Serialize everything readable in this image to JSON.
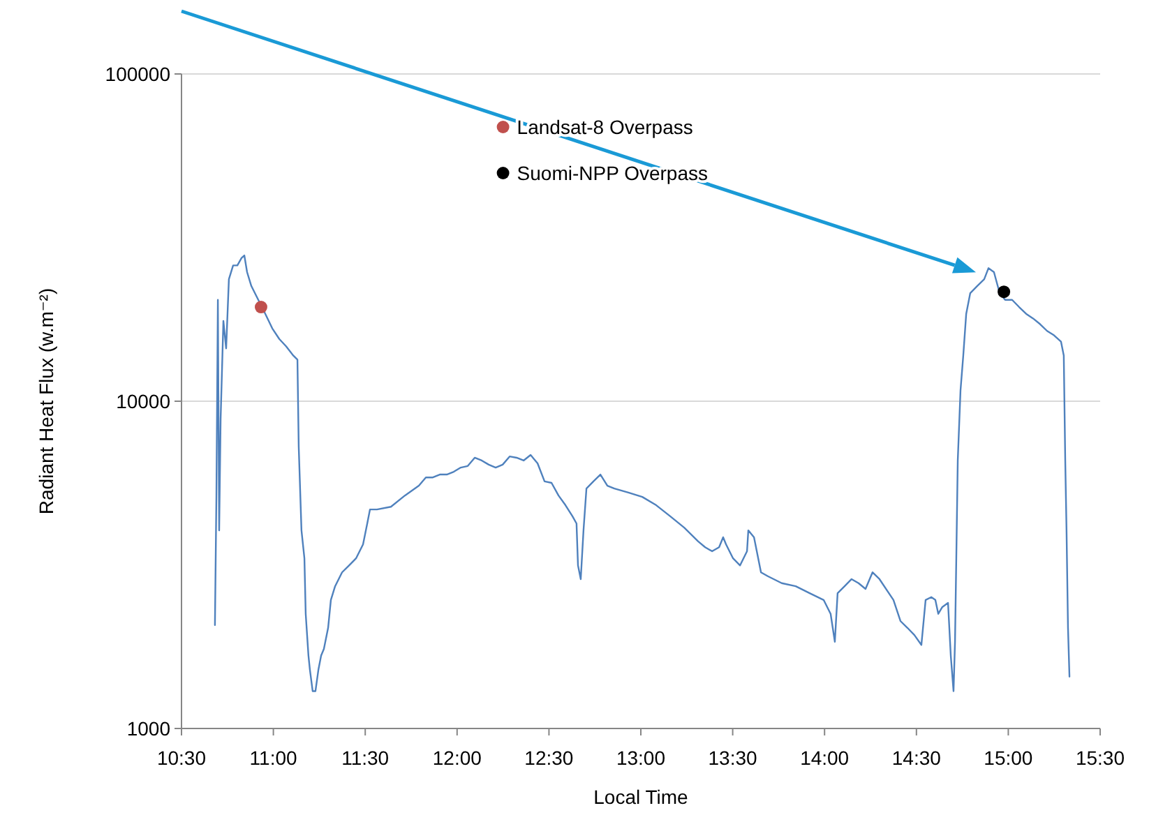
{
  "chart_data": {
    "type": "line",
    "xlabel": "Local Time",
    "ylabel": "Radiant Heat Flux (w.m⁻²)",
    "xlim": [
      10.5,
      15.5
    ],
    "xticks": [
      {
        "value": 10.5,
        "label": "10:30"
      },
      {
        "value": 11,
        "label": "11:00"
      },
      {
        "value": 11.5,
        "label": "11:30"
      },
      {
        "value": 12,
        "label": "12:00"
      },
      {
        "value": 12.5,
        "label": "12:30"
      },
      {
        "value": 13,
        "label": "13:00"
      },
      {
        "value": 13.5,
        "label": "13:30"
      },
      {
        "value": 14,
        "label": "14:00"
      },
      {
        "value": 14.5,
        "label": "14:30"
      },
      {
        "value": 15,
        "label": "15:00"
      },
      {
        "value": 15.5,
        "label": "15:30"
      }
    ],
    "ylim": [
      1000,
      100000
    ],
    "yticks": [
      1000,
      10000,
      100000
    ],
    "log": "y",
    "grid": "y",
    "legend": "top",
    "series": [
      {
        "color": "#4f81bd",
        "marker": "none",
        "line_style": "solid",
        "x": [
          10.682,
          10.69,
          10.698,
          10.705,
          10.713,
          10.728,
          10.743,
          10.758,
          10.781,
          10.804,
          10.827,
          10.842,
          10.857,
          10.88,
          10.918,
          10.956,
          10.994,
          11.032,
          11.07,
          11.108,
          11.131,
          11.138,
          11.153,
          11.169,
          11.176,
          11.191,
          11.199,
          11.214,
          11.229,
          11.245,
          11.26,
          11.275,
          11.298,
          11.313,
          11.336,
          11.374,
          11.412,
          11.45,
          11.488,
          11.511,
          11.526,
          11.564,
          11.64,
          11.716,
          11.792,
          11.83,
          11.868,
          11.906,
          11.944,
          11.982,
          12.02,
          12.058,
          12.096,
          12.134,
          12.172,
          12.21,
          12.248,
          12.286,
          12.324,
          12.362,
          12.4,
          12.438,
          12.476,
          12.514,
          12.552,
          12.59,
          12.628,
          12.65,
          12.658,
          12.673,
          12.688,
          12.704,
          12.742,
          12.78,
          12.818,
          12.856,
          12.932,
          13.008,
          13.084,
          13.16,
          13.236,
          13.312,
          13.35,
          13.388,
          13.426,
          13.448,
          13.464,
          13.502,
          13.54,
          13.578,
          13.585,
          13.616,
          13.654,
          13.691,
          13.767,
          13.843,
          13.919,
          13.995,
          14.033,
          14.056,
          14.071,
          14.109,
          14.147,
          14.185,
          14.223,
          14.261,
          14.299,
          14.375,
          14.413,
          14.451,
          14.489,
          14.527,
          14.55,
          14.581,
          14.603,
          14.619,
          14.641,
          14.672,
          14.687,
          14.702,
          14.71,
          14.717,
          14.725,
          14.74,
          14.755,
          14.771,
          14.793,
          14.831,
          14.869,
          14.892,
          14.922,
          14.953,
          14.983,
          15.021,
          15.059,
          15.097,
          15.135,
          15.173,
          15.211,
          15.249,
          15.287,
          15.302,
          15.31,
          15.317,
          15.325,
          15.333
        ],
        "values": [
          2070,
          5150,
          20400,
          4030,
          8850,
          17600,
          14500,
          23600,
          26000,
          26000,
          27400,
          27900,
          24800,
          22500,
          20400,
          18500,
          16700,
          15500,
          14700,
          13800,
          13400,
          7270,
          4030,
          3310,
          2240,
          1670,
          1510,
          1300,
          1300,
          1510,
          1670,
          1750,
          2030,
          2470,
          2720,
          3000,
          3150,
          3310,
          3650,
          4230,
          4670,
          4670,
          4760,
          5150,
          5520,
          5850,
          5850,
          5970,
          5970,
          6090,
          6270,
          6340,
          6720,
          6590,
          6400,
          6270,
          6400,
          6780,
          6720,
          6590,
          6850,
          6460,
          5690,
          5630,
          5150,
          4810,
          4450,
          4230,
          3150,
          2860,
          4030,
          5410,
          5690,
          5970,
          5520,
          5410,
          5260,
          5100,
          4810,
          4450,
          4110,
          3730,
          3580,
          3480,
          3580,
          3840,
          3650,
          3310,
          3150,
          3480,
          4030,
          3840,
          3000,
          2920,
          2780,
          2720,
          2590,
          2470,
          2240,
          1840,
          2590,
          2720,
          2860,
          2780,
          2670,
          3000,
          2860,
          2470,
          2130,
          2030,
          1930,
          1800,
          2470,
          2520,
          2470,
          2240,
          2350,
          2420,
          1670,
          1300,
          1840,
          3310,
          6590,
          10800,
          13800,
          18500,
          21400,
          22500,
          23600,
          25500,
          24800,
          21400,
          20400,
          20400,
          19400,
          18500,
          17900,
          17200,
          16400,
          15900,
          15200,
          13800,
          6590,
          4030,
          2030,
          1440
        ]
      },
      {
        "type": "scatter",
        "name": "Landsat-8 Overpass",
        "color": "#c0504d",
        "marker": "circle",
        "x": [
          10.933
        ],
        "values": [
          19400
        ]
      },
      {
        "type": "scatter",
        "name": "Suomi-NPP Overpass",
        "color": "#000000",
        "marker": "circle",
        "x": [
          14.976
        ],
        "values": [
          21600
        ]
      }
    ]
  }
}
